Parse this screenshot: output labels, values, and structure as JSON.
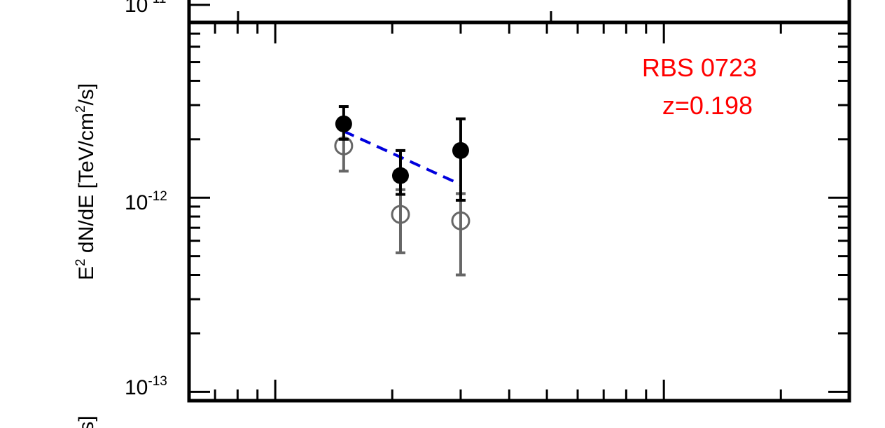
{
  "chart_data": {
    "type": "scatter",
    "title": "",
    "xscale": "log",
    "yscale": "log",
    "xlim": [
      0.06,
      3
    ],
    "ylim": [
      9e-14,
      8e-12
    ],
    "ylabel": {
      "prefix": "E",
      "sup1": "2",
      "middle": " dN/dE [TeV/cm",
      "sup2": "2",
      "suffix": "/s]"
    },
    "clipped_neighbor_ylabel": "/s]",
    "yticks": [
      {
        "value": 1e-12,
        "base": "10",
        "exp": "-12"
      },
      {
        "value": 1e-13,
        "base": "10",
        "exp": "-13"
      }
    ],
    "clipped_top_tick": {
      "base": "10",
      "exp": "-11"
    },
    "annotation": {
      "line1": "RBS 0723",
      "line2": "z=0.198",
      "color": "#ff0000"
    },
    "series": [
      {
        "role": "observed",
        "style": "filled-circle",
        "color": "#000000",
        "points": [
          {
            "x": 0.15,
            "y": 2.4e-12,
            "ylo": 2e-12,
            "yhi": 2.95e-12
          },
          {
            "x": 0.21,
            "y": 1.3e-12,
            "ylo": 1.04e-12,
            "yhi": 1.75e-12
          },
          {
            "x": 0.3,
            "y": 1.75e-12,
            "ylo": 9.7e-13,
            "yhi": 2.55e-12
          }
        ]
      },
      {
        "role": "deabsorbed",
        "style": "open-circle",
        "color": "#666666",
        "points": [
          {
            "x": 0.15,
            "y": 1.85e-12,
            "ylo": 1.37e-12,
            "yhi": 2.25e-12
          },
          {
            "x": 0.21,
            "y": 8.2e-13,
            "ylo": 5.2e-13,
            "yhi": 1.1e-12
          },
          {
            "x": 0.3,
            "y": 7.6e-13,
            "ylo": 4e-13,
            "yhi": 1.05e-12
          }
        ]
      }
    ],
    "fit_line": {
      "style": "dashed",
      "color": "#0000dd",
      "x": [
        0.15,
        0.3
      ],
      "y": [
        2.2e-12,
        1.17e-12
      ]
    }
  }
}
